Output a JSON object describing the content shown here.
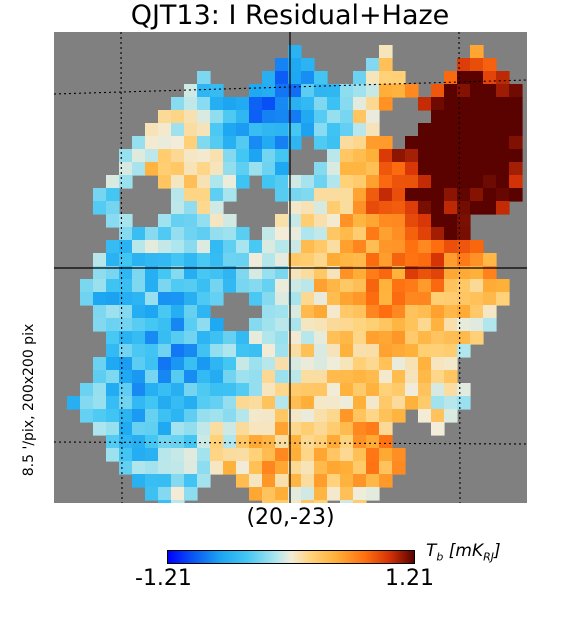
{
  "title": "QJT13: I Residual+Haze",
  "center_coord": "(20,-23)",
  "side_label": "8.5 '/pix,   200x200 pix",
  "colorbar": {
    "min_label": "-1.21",
    "max_label": "1.21",
    "unit_main": "T",
    "unit_sub_b": "b",
    "unit_bracket": "[mK",
    "unit_sub_rj": "RJ",
    "unit_close": "]",
    "cmap": "planck"
  },
  "chart_data": {
    "type": "heatmap",
    "title": "QJT13: I Residual+Haze",
    "projection": "gnomonic",
    "center_lon_lat": [
      20,
      -23
    ],
    "resolution_arcmin_per_pix": 8.5,
    "size_pix": [
      200,
      200
    ],
    "vmin": -1.21,
    "vmax": 1.21,
    "unit": "mK_RJ",
    "graticule": true,
    "masked_color": "#808080",
    "region_means_note_free": [
      {
        "region": "upper-right",
        "level": 0.95
      },
      {
        "region": "upper-left",
        "level": -0.6
      },
      {
        "region": "center-right",
        "level": 0.35
      },
      {
        "region": "left",
        "level": -0.55
      },
      {
        "region": "lower-left",
        "level": -0.5
      },
      {
        "region": "lower-center",
        "level": 0.25
      }
    ]
  }
}
